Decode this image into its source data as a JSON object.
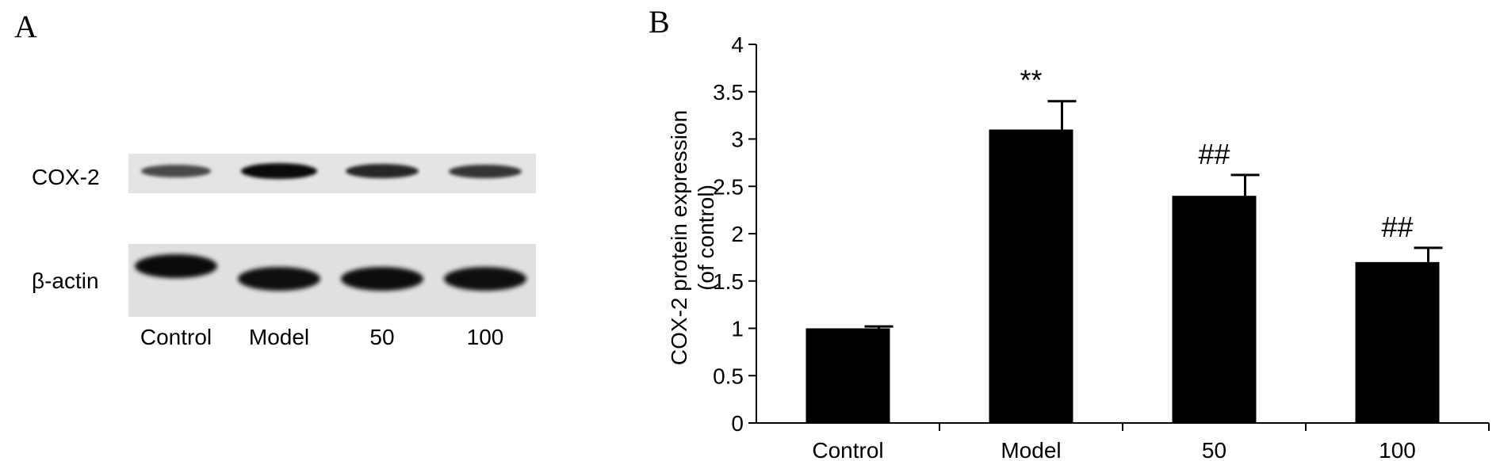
{
  "panel_a": {
    "letter": "A",
    "row_labels": {
      "cox2": "COX-2",
      "actin": "β-actin"
    },
    "lanes": [
      "Control",
      "Model",
      "50",
      "100"
    ],
    "band_intensity": {
      "cox2": [
        0.55,
        1.0,
        0.8,
        0.7
      ],
      "actin": [
        1.0,
        0.95,
        0.98,
        0.95
      ]
    }
  },
  "panel_b": {
    "letter": "B"
  },
  "chart_data": {
    "type": "bar",
    "title": "",
    "xlabel": "",
    "ylabel_lines": [
      "COX-2 protein expression",
      "(of control)"
    ],
    "categories": [
      "Control",
      "Model",
      "50",
      "100"
    ],
    "values": [
      1.0,
      3.1,
      2.4,
      1.7
    ],
    "errors": [
      0.02,
      0.3,
      0.22,
      0.15
    ],
    "annotations": [
      "",
      "**",
      "##",
      "##"
    ],
    "ylim": [
      0,
      4
    ],
    "yticks": [
      "0",
      "0.5",
      "1",
      "1.5",
      "2",
      "2.5",
      "3",
      "3.5",
      "4"
    ],
    "bar_color": "#000000",
    "grid": false,
    "legend": "none"
  }
}
